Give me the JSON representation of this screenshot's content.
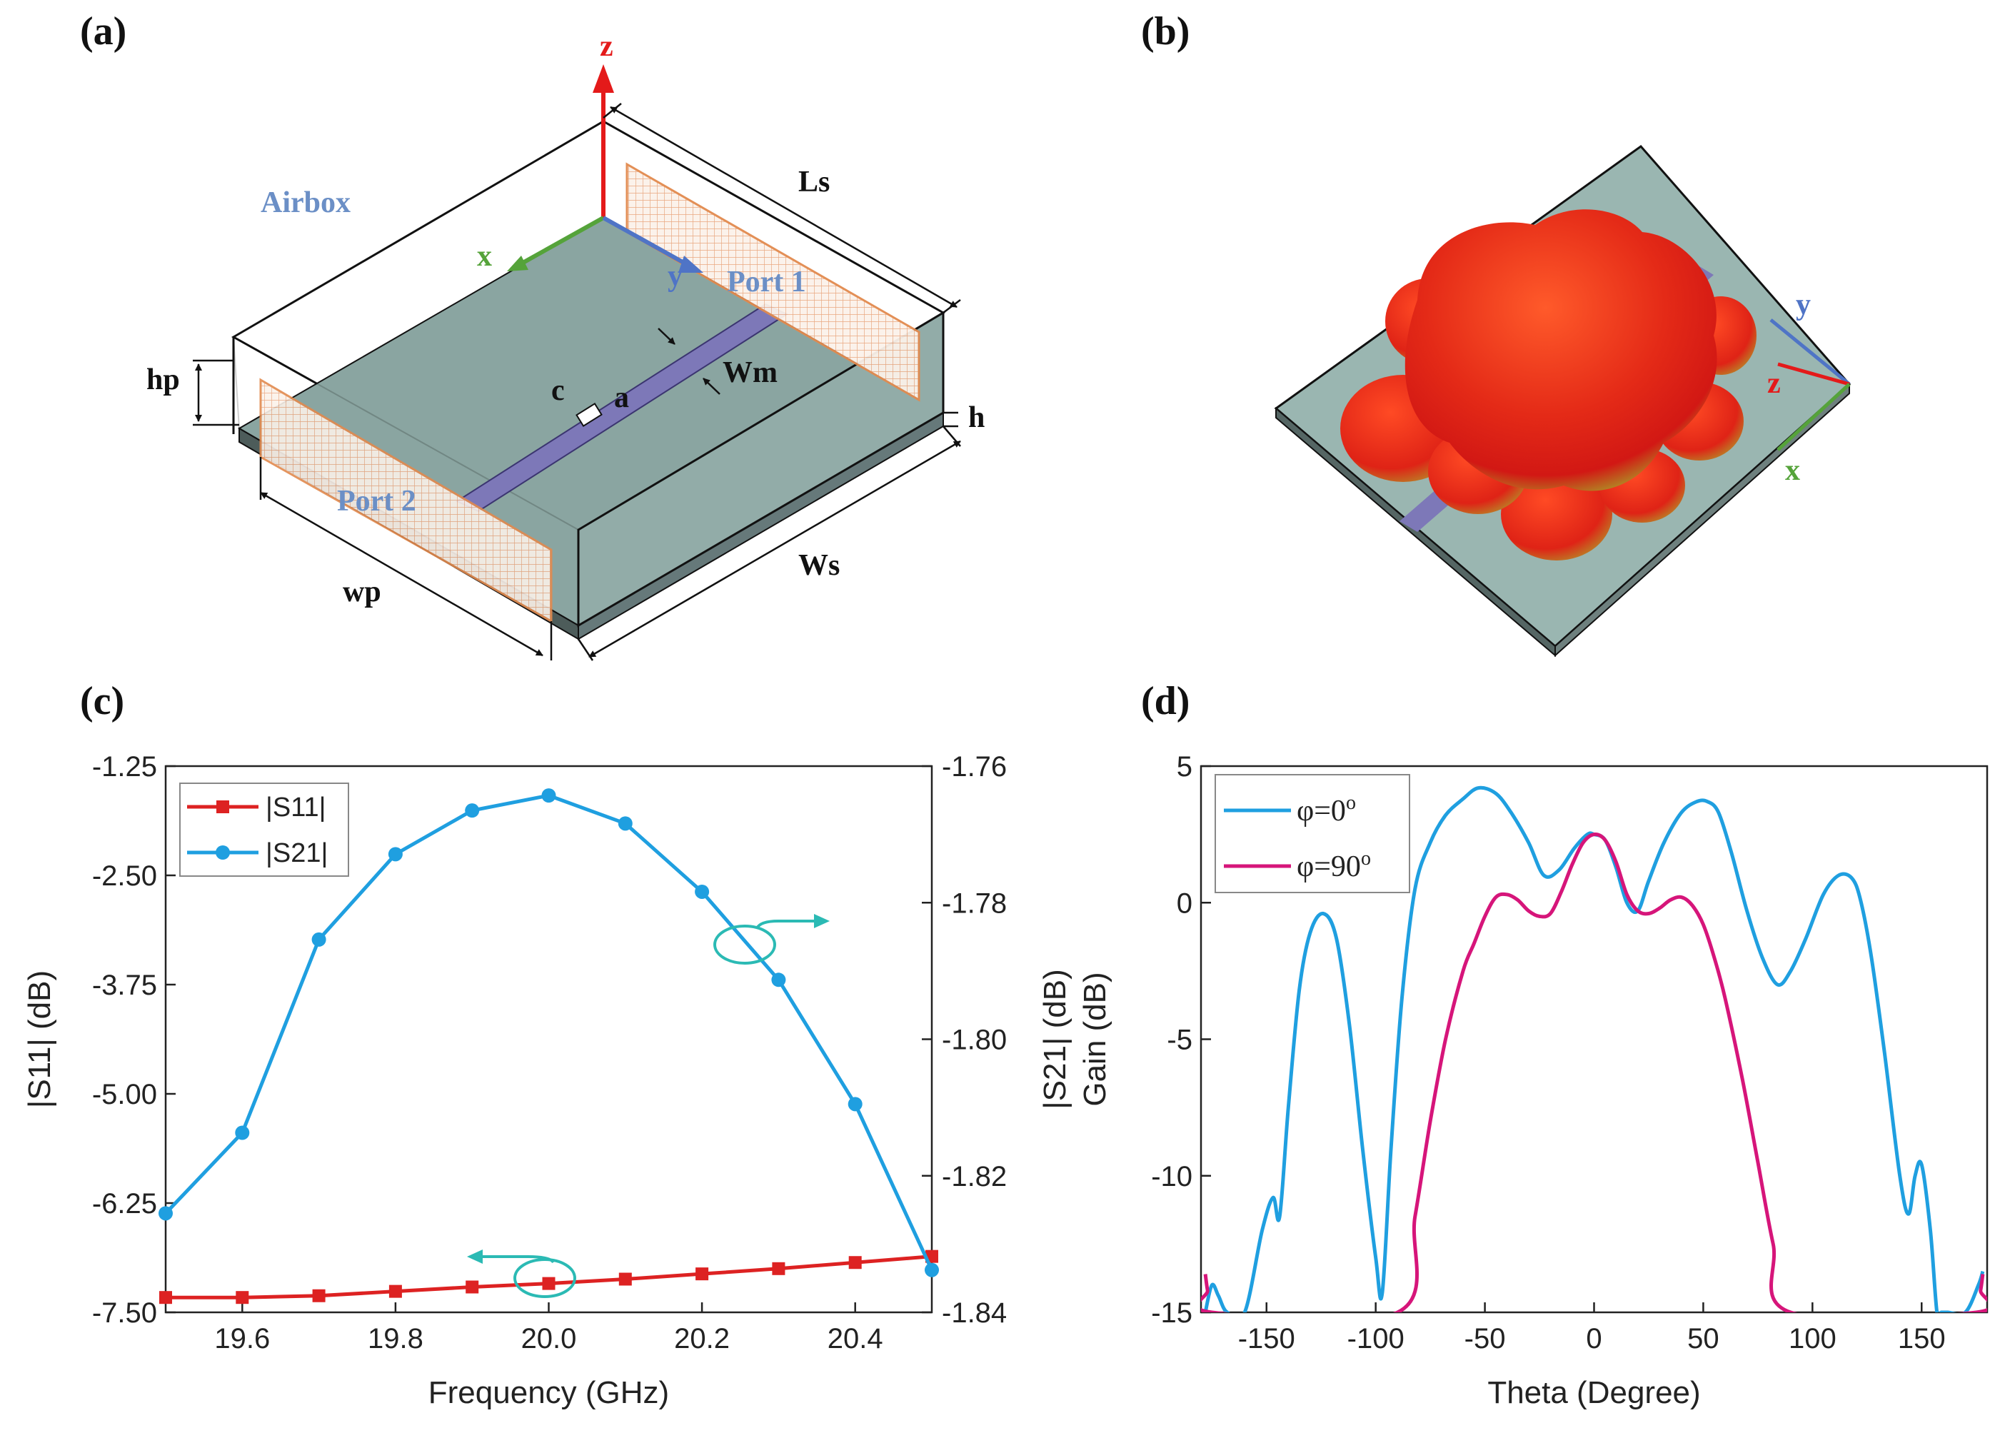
{
  "panels": {
    "a": {
      "label": "(a)",
      "airbox": "Airbox",
      "port1": "Port 1",
      "port2": "Port 2",
      "dims": {
        "ls": "Ls",
        "ws": "Ws",
        "hp": "hp",
        "wp": "wp",
        "h": "h",
        "wm": "Wm",
        "c": "c",
        "a": "a"
      },
      "axes": {
        "x": "x",
        "y": "y",
        "z": "z"
      }
    },
    "b": {
      "label": "(b)",
      "axes": {
        "x": "x",
        "y": "y",
        "z": "z"
      }
    },
    "c": {
      "label": "(c)"
    },
    "d": {
      "label": "(d)"
    }
  },
  "colors": {
    "s11": "#dd2222",
    "s21": "#1f9fe0",
    "phi0": "#1f9fe0",
    "phi90": "#d6157a",
    "substrate": "#8aa5a1",
    "strip": "#7d78b8",
    "port": "#e28a4e",
    "arrow": "#2bbab4"
  },
  "chart_data": [
    {
      "id": "c",
      "type": "line",
      "xlabel": "Frequency (GHz)",
      "ylabel_left": "|S11| (dB)",
      "ylabel_right": "|S21| (dB)",
      "xlim": [
        19.5,
        20.5
      ],
      "ylim_left": [
        -7.5,
        -1.25
      ],
      "ylim_right": [
        -1.84,
        -1.76
      ],
      "xticks": [
        19.6,
        19.8,
        20.0,
        20.2,
        20.4
      ],
      "xtick_labels": [
        "19.6",
        "19.8",
        "20.0",
        "20.2",
        "20.4"
      ],
      "yticks_left": [
        -1.25,
        -2.5,
        -3.75,
        -5.0,
        -6.25,
        -7.5
      ],
      "ytick_labels_left": [
        "-1.25",
        "-2.50",
        "-3.75",
        "-5.00",
        "-6.25",
        "-7.50"
      ],
      "yticks_right": [
        -1.76,
        -1.78,
        -1.8,
        -1.82,
        -1.84
      ],
      "ytick_labels_right": [
        "-1.76",
        "-1.78",
        "-1.80",
        "-1.82",
        "-1.84"
      ],
      "x": [
        19.5,
        19.6,
        19.7,
        19.8,
        19.9,
        20.0,
        20.1,
        20.2,
        20.3,
        20.4,
        20.5
      ],
      "series": [
        {
          "name": "|S11|",
          "axis": "left",
          "marker": "square",
          "values": [
            -7.33,
            -7.33,
            -7.31,
            -7.26,
            -7.21,
            -7.17,
            -7.12,
            -7.06,
            -7.0,
            -6.93,
            -6.86
          ]
        },
        {
          "name": "|S21|",
          "axis": "right",
          "marker": "circle",
          "values": [
            -1.8255,
            -1.8137,
            -1.7854,
            -1.7729,
            -1.7665,
            -1.7643,
            -1.7684,
            -1.7784,
            -1.7913,
            -1.8095,
            -1.8338
          ]
        }
      ]
    },
    {
      "id": "d",
      "type": "line",
      "xlabel": "Theta (Degree)",
      "ylabel": "Gain (dB)",
      "xlim": [
        -180,
        180
      ],
      "ylim": [
        -15,
        5
      ],
      "xticks": [
        -150,
        -100,
        -50,
        0,
        50,
        100,
        150
      ],
      "xtick_labels": [
        "-150",
        "-100",
        "-50",
        "0",
        "50",
        "100",
        "150"
      ],
      "yticks": [
        5,
        0,
        -5,
        -10,
        -15
      ],
      "ytick_labels": [
        "5",
        "0",
        "-5",
        "-10",
        "-15"
      ],
      "series": [
        {
          "name": "φ=0",
          "superscript": "o",
          "x": [
            -178,
            -175,
            -172,
            -168,
            -160,
            -152,
            -147,
            -144,
            -140,
            -135,
            -130,
            -124,
            -118,
            -112,
            -106,
            -100,
            -97,
            -93,
            -88,
            -82,
            -75,
            -68,
            -60,
            -53,
            -45,
            -38,
            -30,
            -23,
            -16,
            -9,
            -3,
            0,
            5,
            10,
            15,
            20,
            25,
            32,
            40,
            47,
            52,
            57,
            63,
            70,
            77,
            84,
            90,
            97,
            105,
            112,
            118,
            122,
            127,
            133,
            140,
            144,
            147,
            150,
            154,
            157,
            159,
            162,
            170,
            176,
            178
          ],
          "values": [
            -15,
            -14,
            -14.4,
            -15,
            -15,
            -12.0,
            -10.8,
            -11.5,
            -7.5,
            -3.2,
            -1.1,
            -0.4,
            -1.3,
            -4.5,
            -9.0,
            -13.0,
            -14.3,
            -9.0,
            -3.5,
            0.5,
            2.2,
            3.2,
            3.8,
            4.2,
            4.0,
            3.3,
            2.2,
            1.0,
            1.2,
            2.0,
            2.5,
            2.5,
            2.3,
            1.3,
            0.0,
            -0.3,
            0.8,
            2.2,
            3.3,
            3.7,
            3.7,
            3.3,
            1.8,
            -0.3,
            -2.0,
            -3.0,
            -2.5,
            -1.3,
            0.3,
            1.0,
            0.9,
            0.1,
            -2.0,
            -5.5,
            -10.0,
            -11.4,
            -10.0,
            -9.6,
            -12.0,
            -15,
            -15,
            -15,
            -15,
            -14.0,
            -13.5
          ]
        },
        {
          "name": "φ=90",
          "superscript": "o",
          "x": [
            -178,
            -177,
            -175,
            -90,
            -82,
            -75,
            -68,
            -60,
            -55,
            -50,
            -45,
            -40,
            -35,
            -30,
            -25,
            -20,
            -15,
            -10,
            -5,
            0,
            5,
            10,
            15,
            20,
            25,
            30,
            35,
            40,
            45,
            50,
            55,
            60,
            68,
            75,
            82,
            90,
            175,
            177,
            178
          ],
          "values": [
            -13.6,
            -14.2,
            -15,
            -15,
            -11.5,
            -8.0,
            -5.0,
            -2.5,
            -1.5,
            -0.5,
            0.2,
            0.3,
            0.1,
            -0.3,
            -0.5,
            -0.4,
            0.4,
            1.4,
            2.2,
            2.5,
            2.3,
            1.5,
            0.3,
            -0.3,
            -0.4,
            -0.2,
            0.1,
            0.2,
            -0.1,
            -0.8,
            -2.0,
            -3.5,
            -6.5,
            -9.5,
            -12.5,
            -15,
            -15,
            -14.2,
            -13.6
          ]
        }
      ]
    }
  ]
}
